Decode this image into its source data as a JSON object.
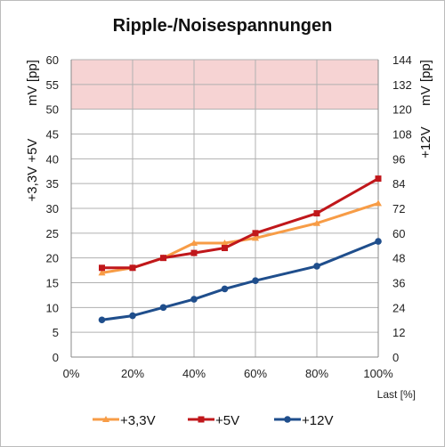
{
  "chart_data": {
    "type": "line",
    "title": "Ripple-/Noisespannungen",
    "xlabel": "Last [%]",
    "ylabel_left": "+3,3V +5V",
    "ylabel_left_unit": "mV [pp]",
    "ylabel_right": "+12V",
    "ylabel_right_unit": "mV [pp]",
    "x_ticks": [
      "0%",
      "20%",
      "40%",
      "60%",
      "80%",
      "100%"
    ],
    "xlim": [
      0,
      100
    ],
    "ylim_left": [
      0,
      60
    ],
    "ylim_right": [
      0,
      144
    ],
    "y_ticks_left": [
      "0",
      "5",
      "10",
      "15",
      "20",
      "25",
      "30",
      "35",
      "40",
      "45",
      "50",
      "55",
      "60"
    ],
    "y_ticks_right": [
      "0",
      "12",
      "24",
      "36",
      "48",
      "60",
      "72",
      "84",
      "96",
      "108",
      "120",
      "132",
      "144"
    ],
    "grid": true,
    "legend_position": "bottom",
    "limit_band": {
      "from": 50,
      "to": 60,
      "axis": "left",
      "color": "#f6d3d3"
    },
    "series": [
      {
        "name": "+3,3V",
        "axis": "left",
        "color": "#f79c46",
        "marker": "triangle",
        "x": [
          10,
          20,
          30,
          40,
          50,
          60,
          80,
          100
        ],
        "y": [
          17,
          18,
          20,
          23,
          23,
          24,
          27,
          31
        ]
      },
      {
        "name": "+5V",
        "axis": "left",
        "color": "#c0171b",
        "marker": "square",
        "x": [
          10,
          20,
          30,
          40,
          50,
          60,
          80,
          100
        ],
        "y": [
          18,
          18,
          20,
          21,
          22,
          25,
          29,
          36
        ]
      },
      {
        "name": "+12V",
        "axis": "right",
        "color": "#1f4e8c",
        "marker": "circle",
        "x": [
          10,
          20,
          30,
          40,
          50,
          60,
          80,
          100
        ],
        "y": [
          18,
          20,
          24,
          28,
          33,
          37,
          44,
          56
        ]
      }
    ]
  }
}
